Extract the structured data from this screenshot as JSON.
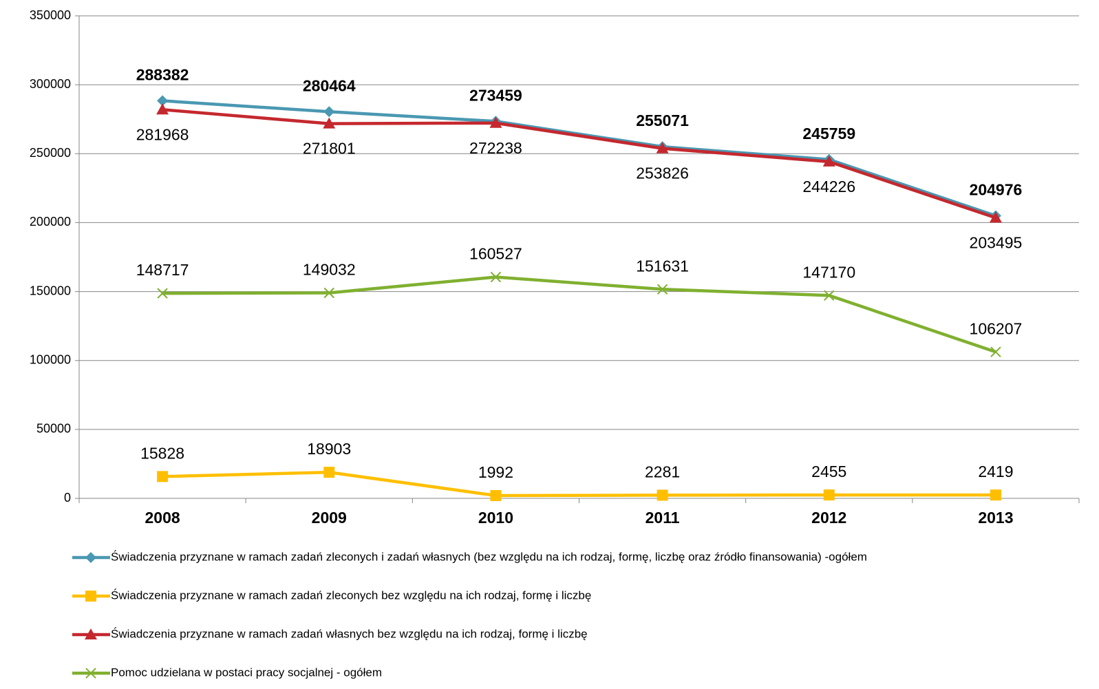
{
  "chart_data": {
    "type": "line",
    "categories": [
      "2008",
      "2009",
      "2010",
      "2011",
      "2012",
      "2013"
    ],
    "series": [
      {
        "name": "Świadczenia przyznane w ramach zadań zleconych i zadań własnych (bez względu na ich rodzaj, formę, liczbę oraz źródło finansowania) -ogółem",
        "color": "#4a98b2",
        "marker": "diamond",
        "values": [
          288382,
          280464,
          273459,
          255071,
          245759,
          204976
        ]
      },
      {
        "name": "Świadczenia przyznane w ramach zadań zleconych bez względu na ich rodzaj, formę i liczbę",
        "color": "#ffbf00",
        "marker": "square",
        "values": [
          15828,
          18903,
          1992,
          2281,
          2455,
          2419
        ]
      },
      {
        "name": "Świadczenia przyznane w ramach zadań własnych bez względu na ich rodzaj, formę i liczbę",
        "color": "#c4282e",
        "marker": "triangle",
        "values": [
          281968,
          271801,
          272238,
          253826,
          244226,
          203495
        ]
      },
      {
        "name": "Pomoc udzielana w postaci pracy socjalnej - ogółem",
        "color": "#80b030",
        "marker": "x",
        "values": [
          148717,
          149032,
          160527,
          151631,
          147170,
          106207
        ]
      }
    ],
    "ylim": [
      0,
      350000
    ],
    "yticks": [
      0,
      50000,
      100000,
      150000,
      200000,
      250000,
      300000,
      350000
    ],
    "grid": true,
    "legend": "bottom"
  }
}
